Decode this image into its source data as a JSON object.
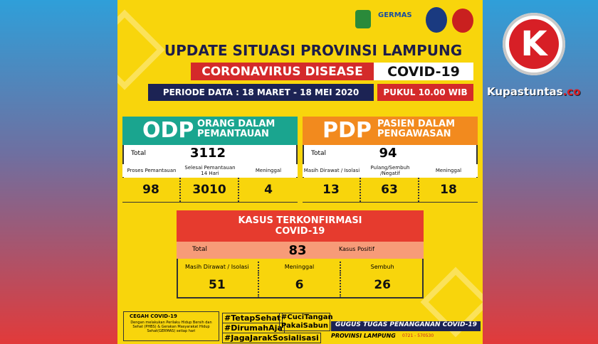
{
  "brand": {
    "logo_letter": "K",
    "name": "Kupastuntas",
    "tld": ".co"
  },
  "header": {
    "logos": [
      "GERMAS"
    ],
    "title": "UPDATE SITUASI PROVINSI LAMPUNG",
    "subtitle": "CORONAVIRUS DISEASE",
    "badge": "COVID-19",
    "period": "PERIODE DATA : 18 MARET - 18 MEI 2020",
    "time": "PUKUL 10.00 WIB"
  },
  "panels": [
    {
      "code": "ODP",
      "label": "ORANG DALAM PEMANTAUAN",
      "total_label": "Total",
      "total": "3112",
      "columns": [
        {
          "label": "Proses Pemantauan",
          "value": "98"
        },
        {
          "label": "Selesai Pemantauan 14 Hari",
          "value": "3010"
        },
        {
          "label": "Meninggal",
          "value": "4"
        }
      ]
    },
    {
      "code": "PDP",
      "label": "PASIEN DALAM PENGAWASAN",
      "total_label": "Total",
      "total": "94",
      "columns": [
        {
          "label": "Masih Dirawat / Isolasi",
          "value": "13"
        },
        {
          "label": "Pulang/Sembuh /Negatif",
          "value": "63"
        },
        {
          "label": "Meninggal",
          "value": "18"
        }
      ]
    }
  ],
  "confirmed": {
    "title": "KASUS TERKONFIRMASI COVID-19",
    "total_label": "Total",
    "total": "83",
    "total_note": "Kasus Positif",
    "columns": [
      {
        "label": "Masih Dirawat / Isolasi",
        "value": "51"
      },
      {
        "label": "Meninggal",
        "value": "6"
      },
      {
        "label": "Sembuh",
        "value": "26"
      }
    ]
  },
  "footer": {
    "prevention_title": "CEGAH COVID-19",
    "prevention_text": "Dengan melakukan Perilaku Hidup Bersih dan Sehat (PHBS) & Gerakan Masyarakat Hidup Sehat(GERMAS) setiap hari",
    "hashtags": [
      "#TetapSehat",
      "#CuciTangan PakaiSabun",
      "#DirumahAja",
      "#JagaJarakSosialisasi"
    ],
    "task_force": "GUGUS TUGAS PENANGANAN COVID-19",
    "province": "PROVINSI LAMPUNG",
    "call_center": "0721 - 570530"
  }
}
